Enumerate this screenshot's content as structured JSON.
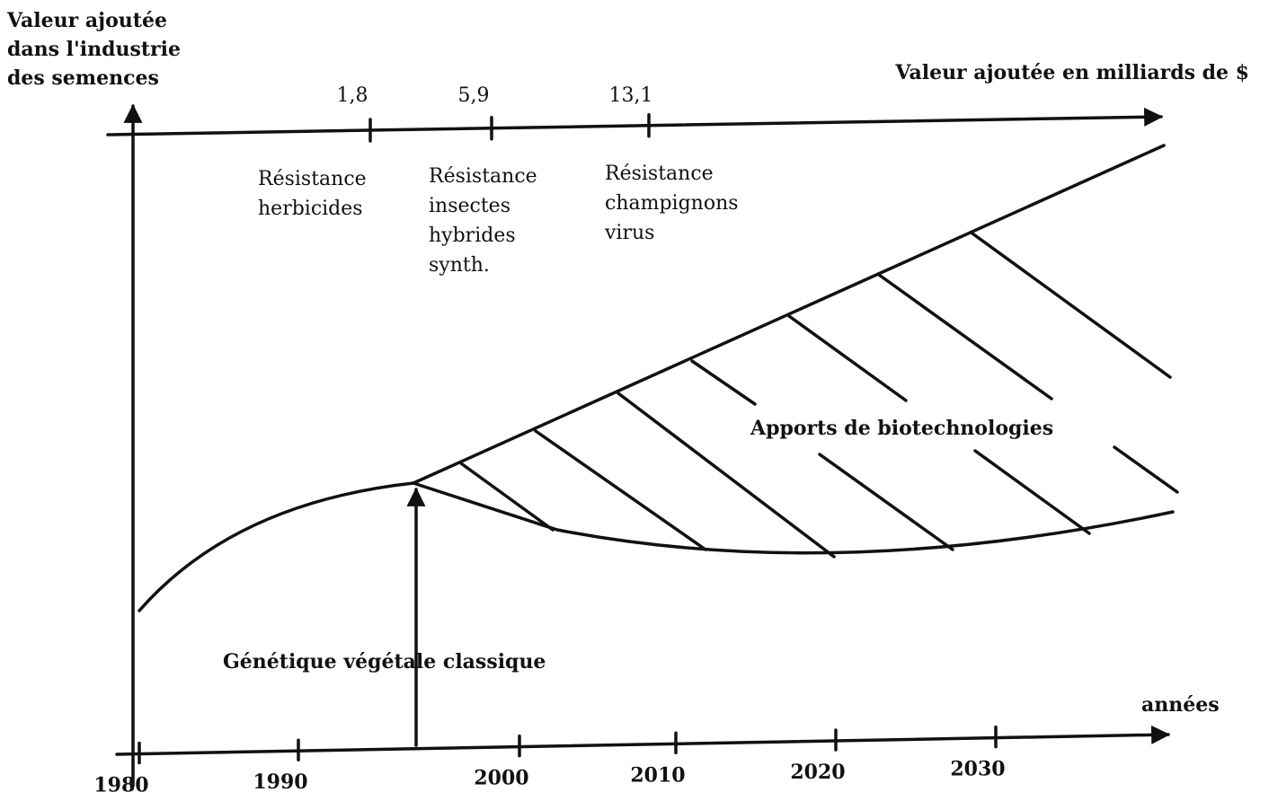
{
  "y_axis_title": [
    "Valeur ajoutée",
    "dans l'industrie",
    "des semences"
  ],
  "top_axis": {
    "title": "Valeur ajoutée en milliards de $",
    "ticks": [
      "1,8",
      "5,9",
      "13,1"
    ]
  },
  "milestones": [
    [
      "Résistance",
      "herbicides"
    ],
    [
      "Résistance",
      "insectes",
      "hybrides",
      "synth."
    ],
    [
      "Résistance",
      "champignons",
      "virus"
    ]
  ],
  "regions": {
    "biotech": "Apports de biotechnologies",
    "classic": "Génétique végétale classique"
  },
  "x_axis": {
    "title": "années",
    "ticks": [
      "1980",
      "1990",
      "2000",
      "2010",
      "2020",
      "2030"
    ]
  }
}
